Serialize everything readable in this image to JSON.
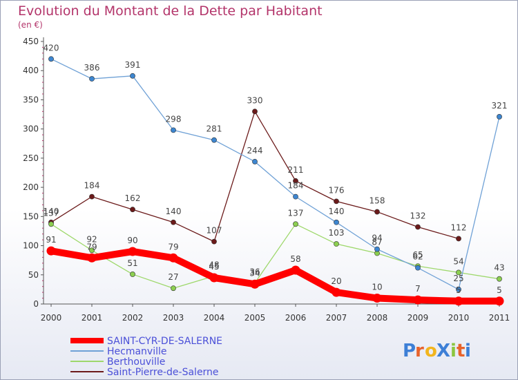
{
  "chart_data": {
    "type": "line",
    "title": "Evolution du Montant de la Dette par Habitant",
    "subtitle": "(en €)",
    "x": [
      "2000",
      "2001",
      "2002",
      "2003",
      "2004",
      "2005",
      "2006",
      "2007",
      "2008",
      "2009",
      "2010",
      "2011"
    ],
    "ylim": [
      0,
      450
    ],
    "yticks": [
      "0",
      "50",
      "100",
      "150",
      "200",
      "250",
      "300",
      "350",
      "400",
      "450"
    ],
    "grid": false,
    "legend_position": "bottom-left",
    "series": [
      {
        "name": "Saint-Pierre-de-Salerne",
        "color": "#6b1a1a",
        "marker_color": "#6b1a1a",
        "values": [
          140,
          184,
          162,
          140,
          107,
          330,
          211,
          176,
          158,
          132,
          112,
          null
        ],
        "labels": [
          "140",
          "184",
          "162",
          "140",
          "107",
          "330",
          "211",
          "176",
          "158",
          "132",
          "112",
          ""
        ]
      },
      {
        "name": "Berthouville",
        "color": "#9ed86b",
        "marker_color": "#8ccf50",
        "values": [
          137,
          92,
          51,
          27,
          48,
          36,
          137,
          103,
          87,
          65,
          54,
          43
        ],
        "labels": [
          "137",
          "92",
          "51",
          "27",
          "48",
          "36",
          "137",
          "103",
          "87",
          "65",
          "54",
          "43"
        ]
      },
      {
        "name": "Hecmanville",
        "color": "#6fa1d6",
        "marker_color": "#3d86d0",
        "values": [
          420,
          386,
          391,
          298,
          281,
          244,
          184,
          140,
          94,
          62,
          25,
          321
        ],
        "labels": [
          "420",
          "386",
          "391",
          "298",
          "281",
          "244",
          "184",
          "140",
          "94",
          "62",
          "25",
          "321"
        ]
      },
      {
        "name": "SAINT-CYR-DE-SALERNE",
        "color": "#ff0000",
        "marker_color": "#ff0000",
        "thick": true,
        "values": [
          91,
          79,
          90,
          79,
          45,
          34,
          58,
          20,
          10,
          7,
          5,
          5
        ],
        "labels": [
          "91",
          "79",
          "90",
          "79",
          "45",
          "34",
          "58",
          "20",
          "10",
          "7",
          "5",
          "5"
        ]
      }
    ],
    "legend": [
      "SAINT-CYR-DE-SALERNE",
      "Hecmanville",
      "Berthouville",
      "Saint-Pierre-de-Salerne"
    ]
  },
  "logo": {
    "text": "ProXiti",
    "letters": [
      "P",
      "r",
      "o",
      "X",
      "i",
      "t",
      "i"
    ],
    "colors": [
      "#3d7fd6",
      "#e8632b",
      "#f2b51d",
      "#3d7fd6",
      "#8cc63f",
      "#e8632b",
      "#3d7fd6"
    ]
  }
}
